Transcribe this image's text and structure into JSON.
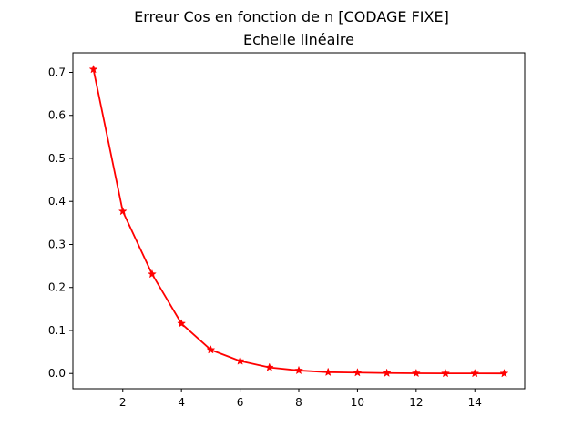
{
  "chart_data": {
    "type": "line",
    "title": "Erreur Cos en fonction de n [CODAGE FIXE]",
    "subtitle": "Echelle linéaire",
    "xlabel": "",
    "ylabel": "",
    "xlim": [
      0.3,
      15.7
    ],
    "ylim": [
      -0.0355,
      0.7455
    ],
    "xticks": [
      2,
      4,
      6,
      8,
      10,
      12,
      14
    ],
    "yticks": [
      0.0,
      0.1,
      0.2,
      0.3,
      0.4,
      0.5,
      0.6,
      0.7
    ],
    "xtick_labels": [
      "2",
      "4",
      "6",
      "8",
      "10",
      "12",
      "14"
    ],
    "ytick_labels": [
      "0.0",
      "0.1",
      "0.2",
      "0.3",
      "0.4",
      "0.5",
      "0.6",
      "0.7"
    ],
    "grid": false,
    "series": [
      {
        "color": "#ff0000",
        "marker": "star",
        "x": [
          1,
          2,
          3,
          4,
          5,
          6,
          7,
          8,
          9,
          10,
          11,
          12,
          13,
          14,
          15
        ],
        "y": [
          0.707,
          0.377,
          0.231,
          0.116,
          0.055,
          0.029,
          0.014,
          0.007,
          0.003,
          0.002,
          0.001,
          0.0005,
          0.0003,
          0.0002,
          0.0001
        ]
      }
    ]
  }
}
